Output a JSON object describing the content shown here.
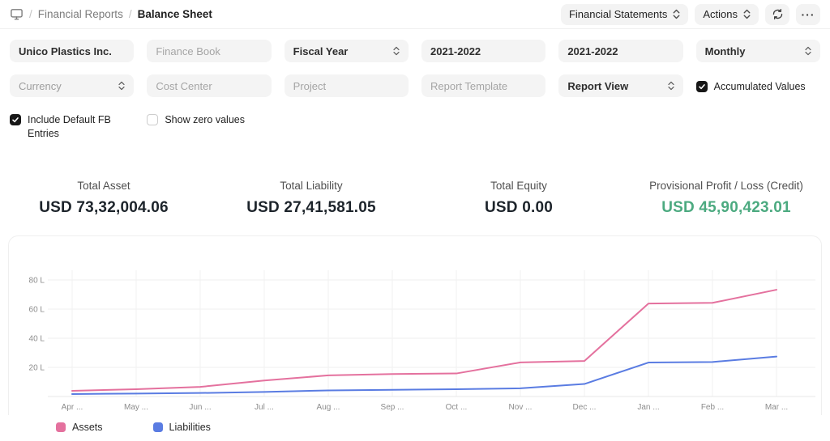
{
  "header": {
    "breadcrumb_section": "Financial Reports",
    "breadcrumb_page": "Balance Sheet",
    "separator": "/",
    "financial_statements_label": "Financial Statements",
    "actions_label": "Actions",
    "more_label": "···"
  },
  "filters": {
    "company_value": "Unico Plastics Inc.",
    "finance_book_placeholder": "Finance Book",
    "fiscal_year_label": "Fiscal Year",
    "from_fiscal_year_value": "2021-2022",
    "to_fiscal_year_value": "2021-2022",
    "periodicity_value": "Monthly",
    "currency_label": "Currency",
    "cost_center_placeholder": "Cost Center",
    "project_placeholder": "Project",
    "report_template_placeholder": "Report Template",
    "report_view_label": "Report View",
    "accumulated_values_label": "Accumulated Values",
    "accumulated_values_checked": true,
    "include_default_fb_label": "Include Default FB Entries",
    "include_default_fb_checked": true,
    "show_zero_values_label": "Show zero values",
    "show_zero_values_checked": false
  },
  "summary": {
    "cards": [
      {
        "label": "Total Asset",
        "value": "USD 73,32,004.06",
        "color": "#1d242b"
      },
      {
        "label": "Total Liability",
        "value": "USD 27,41,581.05",
        "color": "#1d242b"
      },
      {
        "label": "Total Equity",
        "value": "USD 0.00",
        "color": "#1d242b"
      },
      {
        "label": "Provisional Profit / Loss (Credit)",
        "value": "USD 45,90,423.01",
        "color": "#4caa80"
      }
    ]
  },
  "chart_data": {
    "type": "line",
    "title": "",
    "x": [
      "Apr ...",
      "May ...",
      "Jun ...",
      "Jul ...",
      "Aug ...",
      "Sep ...",
      "Oct ...",
      "Nov ...",
      "Dec ...",
      "Jan ...",
      "Feb ...",
      "Mar ..."
    ],
    "series": [
      {
        "name": "Assets",
        "color": "#e4719e",
        "values": [
          3.9,
          5.0,
          6.6,
          11.0,
          14.5,
          15.4,
          15.8,
          23.4,
          24.4,
          63.8,
          64.3,
          73.3
        ]
      },
      {
        "name": "Liabilities",
        "color": "#5a7ce2",
        "values": [
          1.7,
          2.0,
          2.4,
          3.1,
          4.2,
          4.6,
          5.0,
          5.6,
          8.6,
          23.3,
          23.7,
          27.4
        ]
      }
    ],
    "unit": "lakhs",
    "ylabel": "",
    "xlabel": "",
    "yticks": [
      20,
      40,
      60,
      80
    ],
    "ytick_suffix": " L",
    "ylim": [
      0,
      86
    ],
    "grid": true,
    "grid_color": "#efefef",
    "axis_text_color": "#8c8c8c",
    "legend_position": "bottom-left"
  }
}
